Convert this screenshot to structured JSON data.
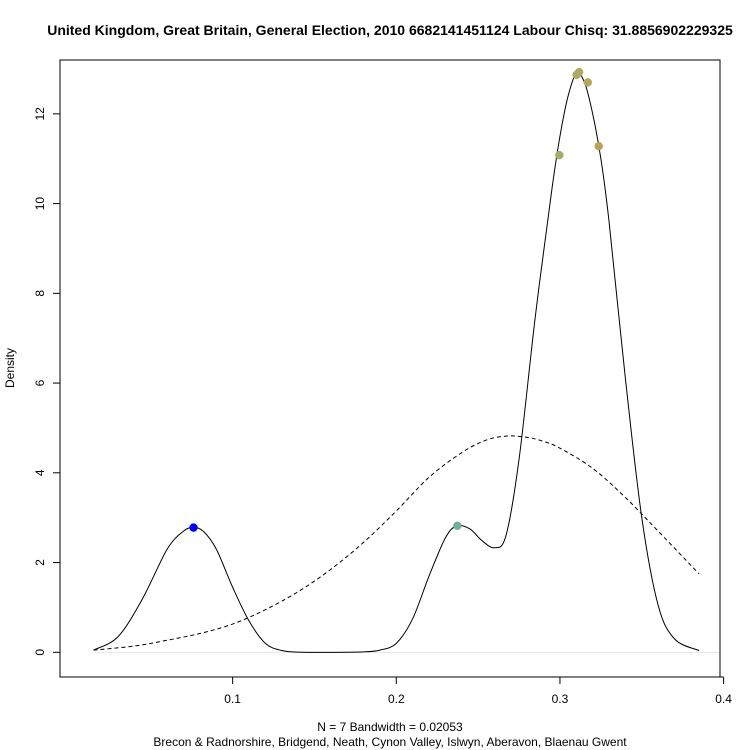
{
  "chart_data": {
    "type": "line",
    "title": "United Kingdom, Great Britain, General Election, 2010 6682141451124 Labour Chisq: 31.8856902229325",
    "xlabel_line1": "N = 7   Bandwidth = 0.02053",
    "xlabel_line2": "Brecon & Radnorshire, Bridgend, Neath, Cynon Valley, Islwyn, Aberavon, Blaenau Gwent",
    "ylabel": "Density",
    "xlim": [
      -0.0055,
      0.3978
    ],
    "ylim": [
      -0.55,
      13.2
    ],
    "x_ticks": [
      0.1,
      0.2,
      0.3,
      0.4
    ],
    "x_tick_labels": [
      "0.1",
      "0.2",
      "0.3",
      "0.4"
    ],
    "y_ticks": [
      0,
      2,
      4,
      6,
      8,
      10,
      12
    ],
    "y_tick_labels": [
      "0",
      "2",
      "4",
      "6",
      "8",
      "10",
      "12"
    ],
    "grid": false,
    "series": [
      {
        "style": "solid",
        "color": "#000000",
        "x": [
          0.015,
          0.03,
          0.045,
          0.06,
          0.07,
          0.076,
          0.082,
          0.09,
          0.1,
          0.11,
          0.12,
          0.13,
          0.14,
          0.16,
          0.18,
          0.19,
          0.2,
          0.21,
          0.22,
          0.23,
          0.237,
          0.245,
          0.252,
          0.26,
          0.267,
          0.275,
          0.285,
          0.295,
          0.3,
          0.305,
          0.31,
          0.315,
          0.32,
          0.325,
          0.33,
          0.34,
          0.35,
          0.36,
          0.37,
          0.385
        ],
        "y": [
          0.05,
          0.35,
          1.2,
          2.3,
          2.7,
          2.78,
          2.7,
          2.3,
          1.45,
          0.7,
          0.2,
          0.04,
          0.005,
          0.0,
          0.01,
          0.05,
          0.2,
          0.75,
          1.7,
          2.55,
          2.82,
          2.75,
          2.5,
          2.33,
          2.6,
          4.3,
          7.5,
          10.3,
          11.5,
          12.4,
          12.9,
          12.7,
          12.0,
          11.0,
          9.6,
          6.1,
          3.0,
          1.05,
          0.3,
          0.04
        ]
      },
      {
        "style": "dashed",
        "color": "#000000",
        "x": [
          0.015,
          0.04,
          0.06,
          0.08,
          0.1,
          0.12,
          0.14,
          0.16,
          0.18,
          0.2,
          0.22,
          0.24,
          0.255,
          0.268,
          0.28,
          0.29,
          0.3,
          0.32,
          0.34,
          0.36,
          0.385
        ],
        "y": [
          0.05,
          0.14,
          0.27,
          0.42,
          0.63,
          0.95,
          1.35,
          1.85,
          2.45,
          3.15,
          3.9,
          4.45,
          4.73,
          4.82,
          4.79,
          4.7,
          4.55,
          4.1,
          3.45,
          2.7,
          1.75
        ]
      }
    ],
    "points": [
      {
        "x": 0.0761,
        "y": 2.78,
        "color": "#0000FF"
      },
      {
        "x": 0.2373,
        "y": 2.82,
        "color": "#6FAF9A"
      },
      {
        "x": 0.2996,
        "y": 11.08,
        "color": "#9EAE6C"
      },
      {
        "x": 0.3102,
        "y": 12.87,
        "color": "#AEAA62"
      },
      {
        "x": 0.3117,
        "y": 12.93,
        "color": "#AEAA62"
      },
      {
        "x": 0.317,
        "y": 12.7,
        "color": "#B4A75A"
      },
      {
        "x": 0.3237,
        "y": 11.28,
        "color": "#B7A45A"
      }
    ]
  }
}
